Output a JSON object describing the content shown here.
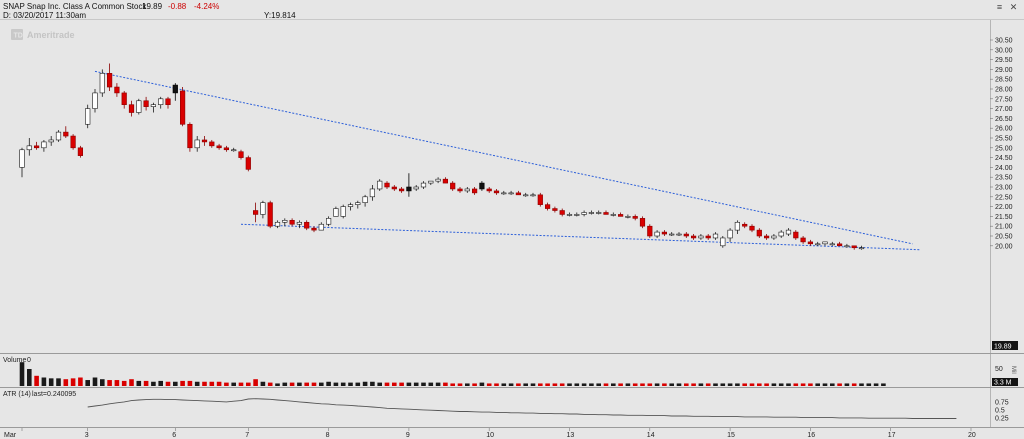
{
  "header": {
    "symbol_line": "SNAP Snap Inc. Class A Common Stock",
    "last": "19.89",
    "change": "-0.88",
    "change_pct": "-4.24%",
    "date_line": "D: 03/20/2017  11:30am",
    "y_readout": "Y:19.814",
    "watermark": "Ameritrade",
    "ctrl_menu": "≡",
    "ctrl_close": "✕"
  },
  "colors": {
    "up": "#ffffff",
    "down": "#d90000",
    "down_outline": "#8a0000",
    "black_candle": "#111111",
    "trend": "#2c5fd9",
    "neg": "#cc0000"
  },
  "chart_data": {
    "type": "candlestick",
    "price_axis_ticks": [
      "30.50",
      "30.00",
      "29.50",
      "29.00",
      "28.50",
      "28.00",
      "27.50",
      "27.00",
      "26.50",
      "26.00",
      "25.50",
      "25.00",
      "24.50",
      "24.00",
      "23.50",
      "23.00",
      "22.50",
      "22.00",
      "21.50",
      "21.00",
      "20.50",
      "20.00"
    ],
    "last_price_label": "19.89",
    "x_ticks": [
      {
        "label": "Mar",
        "slot": 0
      },
      {
        "label": "3",
        "slot": 9
      },
      {
        "label": "6",
        "slot": 21
      },
      {
        "label": "7",
        "slot": 31
      },
      {
        "label": "8",
        "slot": 42
      },
      {
        "label": "9",
        "slot": 53
      },
      {
        "label": "10",
        "slot": 64
      },
      {
        "label": "13",
        "slot": 75
      },
      {
        "label": "14",
        "slot": 86
      },
      {
        "label": "15",
        "slot": 97
      },
      {
        "label": "16",
        "slot": 108
      },
      {
        "label": "17",
        "slot": 119
      },
      {
        "label": "20",
        "slot": 130
      }
    ],
    "candles": [
      {
        "o": 24.0,
        "h": 25.0,
        "l": 23.5,
        "c": 24.9
      },
      {
        "o": 24.9,
        "h": 25.5,
        "l": 24.6,
        "c": 25.1
      },
      {
        "o": 25.1,
        "h": 25.3,
        "l": 24.9,
        "c": 25.0
      },
      {
        "o": 25.0,
        "h": 25.4,
        "l": 24.8,
        "c": 25.3
      },
      {
        "o": 25.3,
        "h": 25.6,
        "l": 25.1,
        "c": 25.4
      },
      {
        "o": 25.4,
        "h": 25.9,
        "l": 25.3,
        "c": 25.8
      },
      {
        "o": 25.8,
        "h": 26.1,
        "l": 25.5,
        "c": 25.6
      },
      {
        "o": 25.6,
        "h": 25.7,
        "l": 24.9,
        "c": 25.0
      },
      {
        "o": 25.0,
        "h": 25.1,
        "l": 24.5,
        "c": 24.6
      },
      {
        "o": 26.2,
        "h": 27.2,
        "l": 26.0,
        "c": 27.0
      },
      {
        "o": 27.0,
        "h": 28.0,
        "l": 26.8,
        "c": 27.8
      },
      {
        "o": 27.8,
        "h": 29.0,
        "l": 27.6,
        "c": 28.8
      },
      {
        "o": 28.8,
        "h": 29.3,
        "l": 27.9,
        "c": 28.1
      },
      {
        "o": 28.1,
        "h": 28.3,
        "l": 27.6,
        "c": 27.8
      },
      {
        "o": 27.8,
        "h": 27.9,
        "l": 27.0,
        "c": 27.2
      },
      {
        "o": 27.2,
        "h": 27.4,
        "l": 26.6,
        "c": 26.8
      },
      {
        "o": 26.8,
        "h": 27.5,
        "l": 26.7,
        "c": 27.4
      },
      {
        "o": 27.4,
        "h": 27.6,
        "l": 26.9,
        "c": 27.1
      },
      {
        "o": 27.1,
        "h": 27.3,
        "l": 26.8,
        "c": 27.2
      },
      {
        "o": 27.2,
        "h": 27.6,
        "l": 27.0,
        "c": 27.5
      },
      {
        "o": 27.5,
        "h": 27.6,
        "l": 27.0,
        "c": 27.2
      },
      {
        "o": 27.8,
        "h": 28.3,
        "l": 27.4,
        "c": 28.2
      },
      {
        "o": 27.9,
        "h": 28.1,
        "l": 26.1,
        "c": 26.2
      },
      {
        "o": 26.2,
        "h": 26.3,
        "l": 24.8,
        "c": 25.0
      },
      {
        "o": 25.0,
        "h": 25.6,
        "l": 24.8,
        "c": 25.4
      },
      {
        "o": 25.4,
        "h": 25.6,
        "l": 25.1,
        "c": 25.3
      },
      {
        "o": 25.3,
        "h": 25.4,
        "l": 25.0,
        "c": 25.1
      },
      {
        "o": 25.1,
        "h": 25.2,
        "l": 24.9,
        "c": 25.0
      },
      {
        "o": 25.0,
        "h": 25.1,
        "l": 24.8,
        "c": 24.9
      },
      {
        "o": 24.9,
        "h": 25.0,
        "l": 24.8,
        "c": 24.9
      },
      {
        "o": 24.8,
        "h": 24.9,
        "l": 24.4,
        "c": 24.5
      },
      {
        "o": 24.5,
        "h": 24.6,
        "l": 23.8,
        "c": 23.9
      },
      {
        "o": 21.8,
        "h": 22.2,
        "l": 21.2,
        "c": 21.6
      },
      {
        "o": 21.6,
        "h": 22.3,
        "l": 21.4,
        "c": 22.2
      },
      {
        "o": 22.2,
        "h": 22.3,
        "l": 20.9,
        "c": 21.0
      },
      {
        "o": 21.0,
        "h": 21.3,
        "l": 20.9,
        "c": 21.2
      },
      {
        "o": 21.2,
        "h": 21.4,
        "l": 21.0,
        "c": 21.3
      },
      {
        "o": 21.3,
        "h": 21.4,
        "l": 21.0,
        "c": 21.1
      },
      {
        "o": 21.1,
        "h": 21.3,
        "l": 20.9,
        "c": 21.2
      },
      {
        "o": 21.2,
        "h": 21.3,
        "l": 20.8,
        "c": 20.9
      },
      {
        "o": 20.9,
        "h": 21.0,
        "l": 20.7,
        "c": 20.8
      },
      {
        "o": 20.8,
        "h": 21.2,
        "l": 20.8,
        "c": 21.1
      },
      {
        "o": 21.1,
        "h": 21.5,
        "l": 21.0,
        "c": 21.4
      },
      {
        "o": 21.5,
        "h": 22.0,
        "l": 21.5,
        "c": 21.9
      },
      {
        "o": 21.5,
        "h": 22.1,
        "l": 21.4,
        "c": 22.0
      },
      {
        "o": 22.0,
        "h": 22.2,
        "l": 21.8,
        "c": 22.1
      },
      {
        "o": 22.1,
        "h": 22.3,
        "l": 21.9,
        "c": 22.2
      },
      {
        "o": 22.2,
        "h": 22.6,
        "l": 22.0,
        "c": 22.5
      },
      {
        "o": 22.5,
        "h": 23.1,
        "l": 22.3,
        "c": 22.9
      },
      {
        "o": 22.9,
        "h": 23.4,
        "l": 22.8,
        "c": 23.3
      },
      {
        "o": 23.2,
        "h": 23.3,
        "l": 22.9,
        "c": 23.0
      },
      {
        "o": 23.0,
        "h": 23.1,
        "l": 22.8,
        "c": 22.9
      },
      {
        "o": 22.9,
        "h": 23.0,
        "l": 22.7,
        "c": 22.8
      },
      {
        "o": 22.8,
        "h": 23.7,
        "l": 22.5,
        "c": 23.0
      },
      {
        "o": 22.9,
        "h": 23.1,
        "l": 22.8,
        "c": 23.0
      },
      {
        "o": 23.0,
        "h": 23.3,
        "l": 22.9,
        "c": 23.2
      },
      {
        "o": 23.2,
        "h": 23.3,
        "l": 23.1,
        "c": 23.3
      },
      {
        "o": 23.3,
        "h": 23.5,
        "l": 23.2,
        "c": 23.4
      },
      {
        "o": 23.4,
        "h": 23.5,
        "l": 23.2,
        "c": 23.2
      },
      {
        "o": 23.2,
        "h": 23.3,
        "l": 22.8,
        "c": 22.9
      },
      {
        "o": 22.9,
        "h": 23.0,
        "l": 22.7,
        "c": 22.8
      },
      {
        "o": 22.8,
        "h": 23.0,
        "l": 22.7,
        "c": 22.9
      },
      {
        "o": 22.9,
        "h": 23.0,
        "l": 22.6,
        "c": 22.7
      },
      {
        "o": 22.9,
        "h": 23.3,
        "l": 22.8,
        "c": 23.2
      },
      {
        "o": 22.9,
        "h": 23.0,
        "l": 22.7,
        "c": 22.8
      },
      {
        "o": 22.8,
        "h": 22.9,
        "l": 22.6,
        "c": 22.7
      },
      {
        "o": 22.7,
        "h": 22.8,
        "l": 22.6,
        "c": 22.7
      },
      {
        "o": 22.7,
        "h": 22.8,
        "l": 22.6,
        "c": 22.7
      },
      {
        "o": 22.7,
        "h": 22.8,
        "l": 22.6,
        "c": 22.6
      },
      {
        "o": 22.6,
        "h": 22.7,
        "l": 22.5,
        "c": 22.6
      },
      {
        "o": 22.6,
        "h": 22.7,
        "l": 22.5,
        "c": 22.6
      },
      {
        "o": 22.6,
        "h": 22.7,
        "l": 22.0,
        "c": 22.1
      },
      {
        "o": 22.1,
        "h": 22.2,
        "l": 21.8,
        "c": 21.9
      },
      {
        "o": 21.9,
        "h": 22.0,
        "l": 21.7,
        "c": 21.8
      },
      {
        "o": 21.8,
        "h": 21.9,
        "l": 21.5,
        "c": 21.6
      },
      {
        "o": 21.6,
        "h": 21.7,
        "l": 21.5,
        "c": 21.6
      },
      {
        "o": 21.6,
        "h": 21.7,
        "l": 21.5,
        "c": 21.6
      },
      {
        "o": 21.6,
        "h": 21.8,
        "l": 21.5,
        "c": 21.7
      },
      {
        "o": 21.7,
        "h": 21.8,
        "l": 21.6,
        "c": 21.7
      },
      {
        "o": 21.7,
        "h": 21.8,
        "l": 21.6,
        "c": 21.7
      },
      {
        "o": 21.7,
        "h": 21.8,
        "l": 21.6,
        "c": 21.6
      },
      {
        "o": 21.6,
        "h": 21.7,
        "l": 21.5,
        "c": 21.6
      },
      {
        "o": 21.6,
        "h": 21.7,
        "l": 21.5,
        "c": 21.5
      },
      {
        "o": 21.5,
        "h": 21.6,
        "l": 21.4,
        "c": 21.5
      },
      {
        "o": 21.5,
        "h": 21.6,
        "l": 21.3,
        "c": 21.4
      },
      {
        "o": 21.4,
        "h": 21.5,
        "l": 20.9,
        "c": 21.0
      },
      {
        "o": 21.0,
        "h": 21.1,
        "l": 20.4,
        "c": 20.5
      },
      {
        "o": 20.5,
        "h": 20.8,
        "l": 20.4,
        "c": 20.7
      },
      {
        "o": 20.7,
        "h": 20.8,
        "l": 20.5,
        "c": 20.6
      },
      {
        "o": 20.6,
        "h": 20.7,
        "l": 20.5,
        "c": 20.6
      },
      {
        "o": 20.6,
        "h": 20.7,
        "l": 20.5,
        "c": 20.6
      },
      {
        "o": 20.6,
        "h": 20.7,
        "l": 20.4,
        "c": 20.5
      },
      {
        "o": 20.5,
        "h": 20.6,
        "l": 20.3,
        "c": 20.4
      },
      {
        "o": 20.4,
        "h": 20.6,
        "l": 20.3,
        "c": 20.5
      },
      {
        "o": 20.5,
        "h": 20.6,
        "l": 20.3,
        "c": 20.4
      },
      {
        "o": 20.4,
        "h": 20.7,
        "l": 20.3,
        "c": 20.6
      },
      {
        "o": 20.0,
        "h": 20.5,
        "l": 19.9,
        "c": 20.4
      },
      {
        "o": 20.4,
        "h": 20.9,
        "l": 20.2,
        "c": 20.8
      },
      {
        "o": 20.8,
        "h": 21.3,
        "l": 20.6,
        "c": 21.2
      },
      {
        "o": 21.1,
        "h": 21.2,
        "l": 20.9,
        "c": 21.0
      },
      {
        "o": 21.0,
        "h": 21.1,
        "l": 20.7,
        "c": 20.8
      },
      {
        "o": 20.8,
        "h": 20.9,
        "l": 20.4,
        "c": 20.5
      },
      {
        "o": 20.5,
        "h": 20.6,
        "l": 20.3,
        "c": 20.4
      },
      {
        "o": 20.4,
        "h": 20.6,
        "l": 20.3,
        "c": 20.5
      },
      {
        "o": 20.5,
        "h": 20.8,
        "l": 20.4,
        "c": 20.7
      },
      {
        "o": 20.6,
        "h": 20.9,
        "l": 20.5,
        "c": 20.8
      },
      {
        "o": 20.7,
        "h": 20.8,
        "l": 20.3,
        "c": 20.4
      },
      {
        "o": 20.4,
        "h": 20.5,
        "l": 20.1,
        "c": 20.2
      },
      {
        "o": 20.2,
        "h": 20.3,
        "l": 20.0,
        "c": 20.1
      },
      {
        "o": 20.1,
        "h": 20.2,
        "l": 20.0,
        "c": 20.1
      },
      {
        "o": 20.1,
        "h": 20.2,
        "l": 20.0,
        "c": 20.2
      },
      {
        "o": 20.1,
        "h": 20.2,
        "l": 20.0,
        "c": 20.1
      },
      {
        "o": 20.1,
        "h": 20.2,
        "l": 20.0,
        "c": 20.0
      },
      {
        "o": 20.0,
        "h": 20.1,
        "l": 19.9,
        "c": 20.0
      },
      {
        "o": 20.0,
        "h": 20.0,
        "l": 19.8,
        "c": 19.9
      },
      {
        "o": 19.9,
        "h": 20.0,
        "l": 19.8,
        "c": 19.9
      }
    ],
    "black_candles": [
      21,
      53,
      63
    ],
    "trendlines": [
      {
        "from": {
          "slot": 10,
          "price": 28.9
        },
        "to": {
          "slot": 122,
          "price": 20.1
        }
      },
      {
        "from": {
          "slot": 30,
          "price": 21.1
        },
        "to": {
          "slot": 123,
          "price": 19.8
        }
      }
    ],
    "volume": {
      "label": "Volume",
      "value": "0",
      "axis_tick": "50",
      "unit_label": "Mil",
      "last_label": "3.3 M",
      "bars": [
        28,
        20,
        12,
        10,
        9,
        9,
        8,
        9,
        10,
        7,
        10,
        8,
        7,
        7,
        6,
        8,
        6,
        6,
        5,
        6,
        5,
        5,
        6,
        6,
        5,
        5,
        5,
        5,
        4,
        4,
        4,
        4,
        8,
        5,
        4,
        3,
        4,
        4,
        4,
        4,
        4,
        4,
        5,
        4,
        4,
        4,
        4,
        5,
        5,
        4,
        4,
        4,
        4,
        4,
        4,
        4,
        4,
        4,
        4,
        3,
        3,
        3,
        3,
        4,
        3,
        3,
        3,
        3,
        3,
        3,
        3,
        3,
        3,
        3,
        3,
        3,
        3,
        3,
        3,
        3,
        3,
        3,
        3,
        3,
        3,
        3,
        3,
        3,
        3,
        3,
        3,
        3,
        3,
        3,
        3,
        3,
        3,
        3,
        3,
        3,
        3,
        3,
        3,
        3,
        3,
        3,
        3,
        3,
        3,
        3,
        3,
        3,
        3,
        3,
        3,
        3,
        3,
        3,
        3
      ]
    },
    "atr": {
      "label": "ATR (14)",
      "last_text": "last=0.240095",
      "axis_ticks": [
        "0.75",
        "0.5",
        "0.25"
      ],
      "values": [
        0.6,
        0.63,
        0.66,
        0.7,
        0.73,
        0.76,
        0.8,
        0.82,
        0.83,
        0.84,
        0.84,
        0.83,
        0.83,
        0.82,
        0.81,
        0.8,
        0.79,
        0.78,
        0.77,
        0.76,
        0.78,
        0.8,
        0.85,
        0.86,
        0.85,
        0.84,
        0.82,
        0.8,
        0.78,
        0.76,
        0.74,
        0.72,
        0.7,
        0.69,
        0.67,
        0.66,
        0.65,
        0.63,
        0.62,
        0.6,
        0.58,
        0.56,
        0.55,
        0.54,
        0.53,
        0.52,
        0.51,
        0.5,
        0.49,
        0.48,
        0.47,
        0.46,
        0.46,
        0.45,
        0.44,
        0.44,
        0.43,
        0.43,
        0.42,
        0.42,
        0.41,
        0.41,
        0.4,
        0.4,
        0.39,
        0.39,
        0.38,
        0.38,
        0.37,
        0.37,
        0.36,
        0.36,
        0.35,
        0.35,
        0.34,
        0.34,
        0.34,
        0.33,
        0.33,
        0.33,
        0.32,
        0.32,
        0.32,
        0.31,
        0.31,
        0.31,
        0.3,
        0.3,
        0.3,
        0.3,
        0.29,
        0.29,
        0.29,
        0.29,
        0.28,
        0.28,
        0.28,
        0.28,
        0.27,
        0.27,
        0.27,
        0.27,
        0.27,
        0.26,
        0.26,
        0.26,
        0.26,
        0.25,
        0.25,
        0.25,
        0.25,
        0.25,
        0.25,
        0.24,
        0.24,
        0.24,
        0.24,
        0.24,
        0.24,
        0.24
      ]
    },
    "ylim": [
      19.7,
      30.7
    ],
    "grid": false,
    "legend": "none"
  }
}
